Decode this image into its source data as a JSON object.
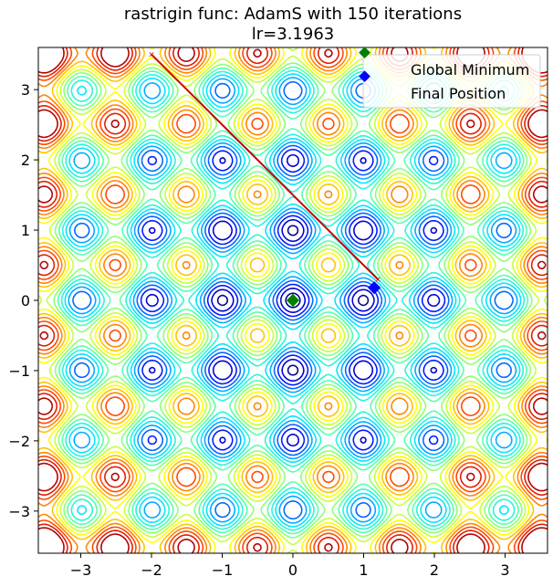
{
  "chart_data": {
    "type": "contour",
    "title": "rastrigin func: AdamS with 150 iterations",
    "subtitle": "lr=3.1963",
    "function": "rastrigin",
    "xlim": [
      -3.6,
      3.6
    ],
    "ylim": [
      -3.6,
      3.6
    ],
    "xticks": [
      -3,
      -2,
      -1,
      0,
      1,
      2,
      3
    ],
    "yticks": [
      -3,
      -2,
      -1,
      0,
      1,
      2,
      3
    ],
    "xtick_labels": [
      "−3",
      "−2",
      "−1",
      "0",
      "1",
      "2",
      "3"
    ],
    "ytick_labels": [
      "−3",
      "−2",
      "−1",
      "0",
      "1",
      "2",
      "3"
    ],
    "grid": false,
    "legend": {
      "position": "top-right",
      "entries": [
        {
          "label": "Global Minimum",
          "color": "#008000",
          "marker": "diamond"
        },
        {
          "label": "Final Position",
          "color": "#0000ff",
          "marker": "diamond"
        }
      ]
    },
    "global_minimum": [
      0,
      0
    ],
    "final_position": [
      1.15,
      0.18
    ],
    "path": {
      "color": "#cc0000",
      "points": [
        [
          -2.0,
          3.5
        ],
        [
          1.2,
          0.3
        ]
      ]
    },
    "colormap": [
      "#00008b",
      "#0000ff",
      "#0080ff",
      "#00e5ff",
      "#40ffbf",
      "#9fff60",
      "#ffff00",
      "#ff9900",
      "#ff3300",
      "#b20000"
    ]
  }
}
